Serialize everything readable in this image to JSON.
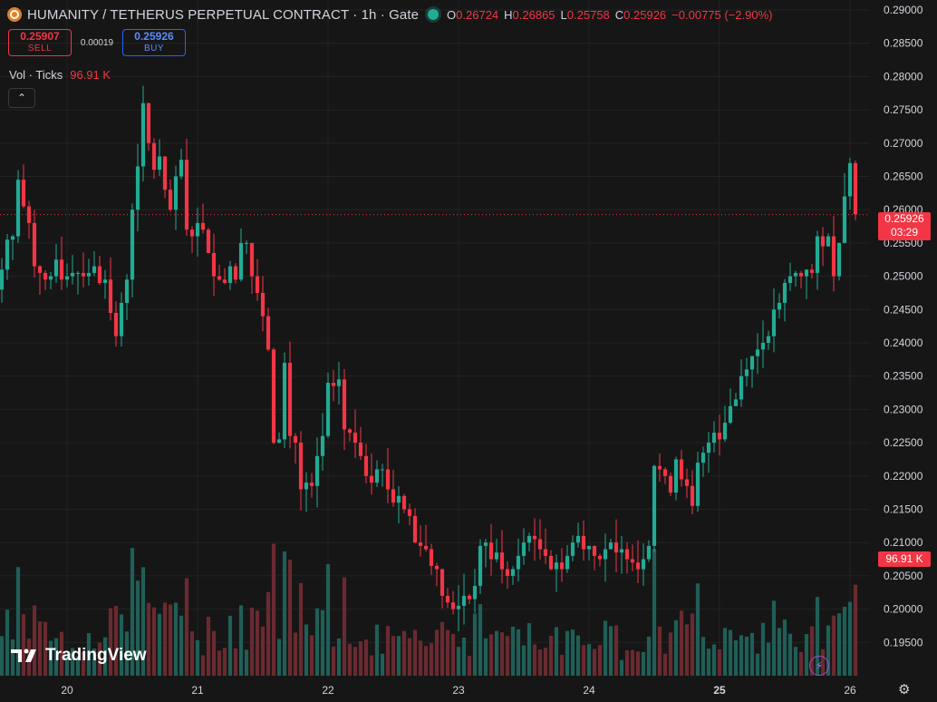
{
  "header": {
    "title": "HUMANITY / TETHERUS PERPETUAL CONTRACT · 1h · Gate",
    "ohlc": [
      {
        "k": "O",
        "v": "0.26724"
      },
      {
        "k": "H",
        "v": "0.26865"
      },
      {
        "k": "L",
        "v": "0.25758"
      },
      {
        "k": "C",
        "v": "0.25926"
      },
      {
        "k": "",
        "v": "−0.00775 (−2.90%)"
      }
    ]
  },
  "trade": {
    "sell_price": "0.25907",
    "sell_label": "SELL",
    "spread": "0.00019",
    "buy_price": "0.25926",
    "buy_label": "BUY"
  },
  "volume": {
    "label": "Vol · Ticks",
    "value": "96.91 K"
  },
  "collapse_icon": "chevron-up-icon",
  "price_tags": {
    "last_price": "0.25926",
    "countdown": "03:29",
    "volume_tag": "96.91 K"
  },
  "branding": {
    "text": "TradingView"
  },
  "colors": {
    "up": "#22ab94",
    "down": "#f23645",
    "up_vol": "#1f5f57",
    "down_vol": "#6a2a30",
    "background": "#161616",
    "grid": "#232323",
    "buy_accent": "#2962ff"
  },
  "chart_data": {
    "type": "candlestick",
    "interval": "1h",
    "ylim": [
      0.19,
      0.2915
    ],
    "y_ticks": [
      "0.29000",
      "0.28500",
      "0.28000",
      "0.27500",
      "0.27000",
      "0.26500",
      "0.26000",
      "0.25500",
      "0.25000",
      "0.24500",
      "0.24000",
      "0.23500",
      "0.23000",
      "0.22500",
      "0.22000",
      "0.21500",
      "0.21000",
      "0.20500",
      "0.20000",
      "0.19500"
    ],
    "x_ticks": [
      "20",
      "21",
      "22",
      "23",
      "24",
      "25",
      "26"
    ],
    "x_tick_hours": [
      12,
      36,
      60,
      84,
      108,
      132,
      156
    ],
    "last_price": 0.25926,
    "close_series": [
      0.251,
      0.2555,
      0.256,
      0.2645,
      0.2605,
      0.258,
      0.2515,
      0.2505,
      0.2495,
      0.25,
      0.2525,
      0.2495,
      0.25,
      0.2505,
      0.2505,
      0.25,
      0.2505,
      0.2515,
      0.249,
      0.2495,
      0.2445,
      0.241,
      0.246,
      0.2495,
      0.26,
      0.2665,
      0.276,
      0.27,
      0.266,
      0.268,
      0.263,
      0.26,
      0.265,
      0.2675,
      0.257,
      0.256,
      0.258,
      0.257,
      0.2535,
      0.25,
      0.2495,
      0.249,
      0.2515,
      0.2495,
      0.255,
      0.255,
      0.25,
      0.2475,
      0.244,
      0.239,
      0.225,
      0.2255,
      0.237,
      0.226,
      0.225,
      0.218,
      0.219,
      0.2185,
      0.223,
      0.226,
      0.234,
      0.2335,
      0.2345,
      0.227,
      0.2265,
      0.225,
      0.223,
      0.22,
      0.219,
      0.221,
      0.221,
      0.218,
      0.216,
      0.217,
      0.215,
      0.214,
      0.21,
      0.2095,
      0.209,
      0.2065,
      0.206,
      0.202,
      0.201,
      0.2,
      0.2005,
      0.202,
      0.2015,
      0.2035,
      0.2095,
      0.21,
      0.2075,
      0.2085,
      0.206,
      0.205,
      0.206,
      0.208,
      0.21,
      0.211,
      0.2105,
      0.209,
      0.208,
      0.206,
      0.207,
      0.206,
      0.208,
      0.21,
      0.211,
      0.209,
      0.2095,
      0.208,
      0.2075,
      0.209,
      0.21,
      0.2085,
      0.209,
      0.2075,
      0.207,
      0.206,
      0.2075,
      0.2095,
      0.2215,
      0.221,
      0.22,
      0.2175,
      0.2225,
      0.2195,
      0.2185,
      0.2155,
      0.222,
      0.2235,
      0.225,
      0.2265,
      0.2255,
      0.228,
      0.2305,
      0.2315,
      0.235,
      0.236,
      0.238,
      0.239,
      0.24,
      0.241,
      0.245,
      0.246,
      0.249,
      0.25,
      0.2505,
      0.25,
      0.251,
      0.2505,
      0.256,
      0.2545,
      0.256,
      0.25,
      0.255,
      0.262,
      0.267,
      0.2593
    ]
  }
}
